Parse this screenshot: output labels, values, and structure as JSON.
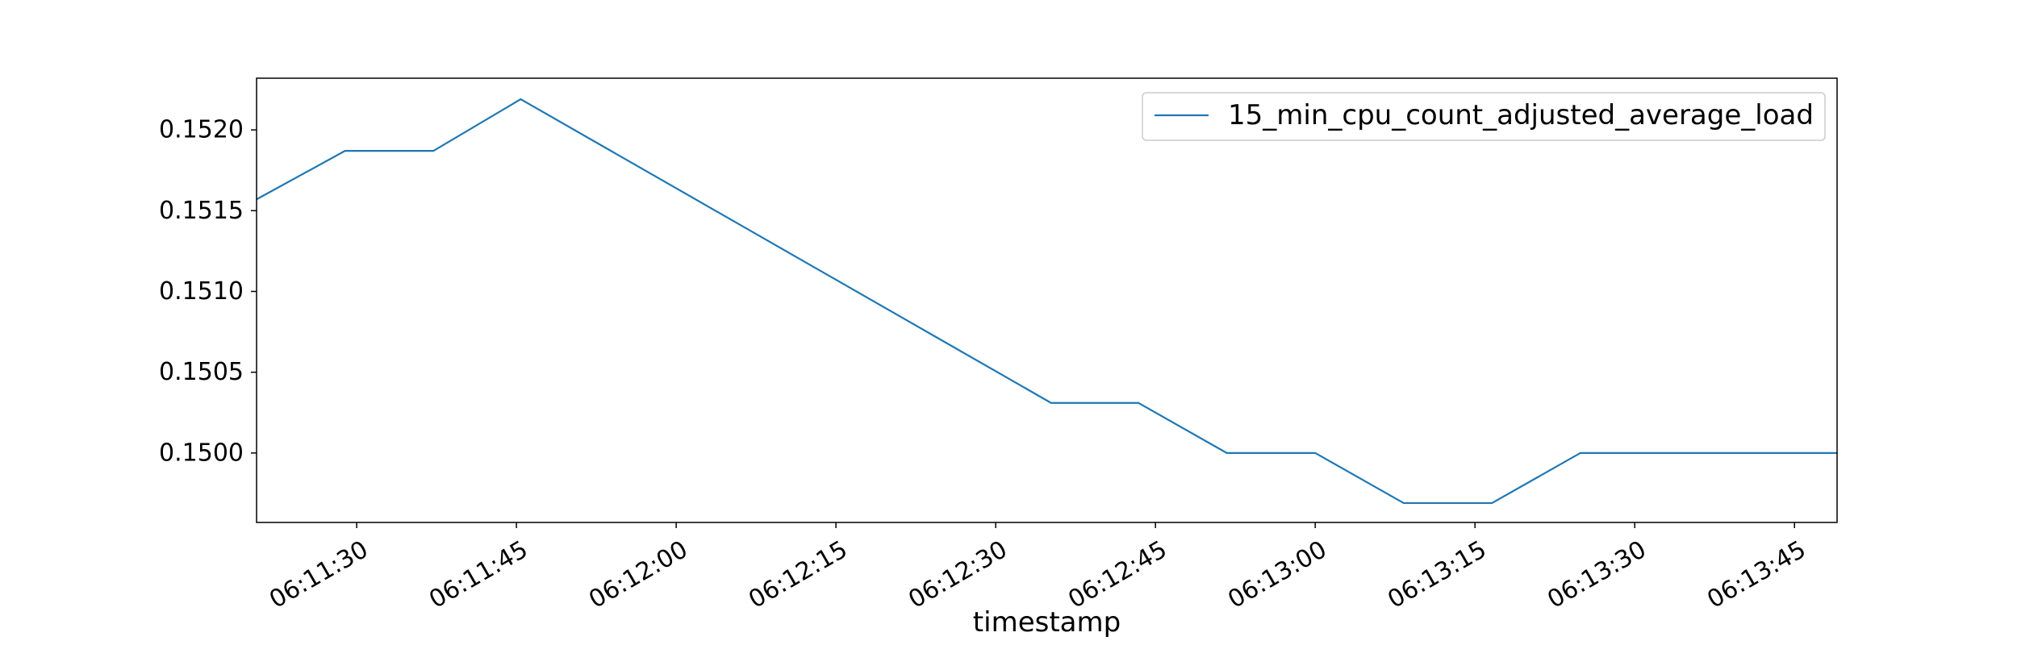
{
  "chart_data": {
    "type": "line",
    "title": "",
    "xlabel": "timestamp",
    "ylabel": "",
    "x_ticks": [
      "06:11:30",
      "06:11:45",
      "06:12:00",
      "06:12:15",
      "06:12:30",
      "06:12:45",
      "06:13:00",
      "06:13:15",
      "06:13:30",
      "06:13:45"
    ],
    "y_ticks": [
      "0.1500",
      "0.1505",
      "0.1510",
      "0.1515",
      "0.1520"
    ],
    "xlim": [
      "06:11:20.6",
      "06:13:49.0"
    ],
    "ylim": [
      0.14957,
      0.15232
    ],
    "grid": false,
    "legend_position": "top-right",
    "series": [
      {
        "name": "15_min_cpu_count_adjusted_average_load",
        "color": "#1f77b4",
        "points": [
          {
            "x": "06:11:20.6",
            "y": 0.15157
          },
          {
            "x": "06:11:28.9",
            "y": 0.15187
          },
          {
            "x": "06:11:37.2",
            "y": 0.15187
          },
          {
            "x": "06:11:45.4",
            "y": 0.15219
          },
          {
            "x": "06:12:35.2",
            "y": 0.15031
          },
          {
            "x": "06:12:43.4",
            "y": 0.15031
          },
          {
            "x": "06:12:51.7",
            "y": 0.15
          },
          {
            "x": "06:13:00.0",
            "y": 0.15
          },
          {
            "x": "06:13:08.3",
            "y": 0.14969
          },
          {
            "x": "06:13:16.6",
            "y": 0.14969
          },
          {
            "x": "06:13:24.9",
            "y": 0.15
          },
          {
            "x": "06:13:49.0",
            "y": 0.15
          }
        ]
      }
    ]
  }
}
